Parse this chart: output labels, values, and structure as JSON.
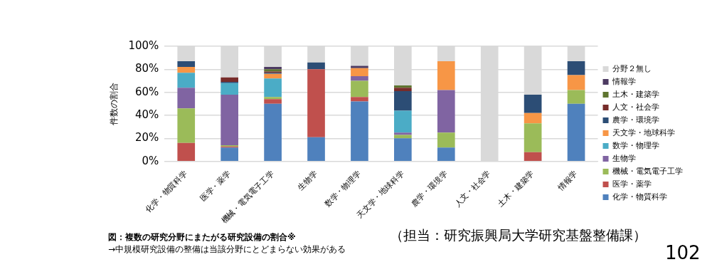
{
  "chart_data": {
    "type": "bar",
    "stacked": true,
    "ylabel": "件数の割合",
    "categories": [
      "化学・物質科学",
      "医学・薬学",
      "機械・電気電子工学",
      "生物学",
      "数学・物理学",
      "天文学・地球科学",
      "農学・環境学",
      "人文・社会学",
      "土木・建築学",
      "情報学"
    ],
    "series": [
      {
        "name": "化学・物質科学",
        "color": "#4f81bd",
        "values": [
          0,
          12,
          50,
          21,
          52,
          20,
          12,
          0,
          0,
          50
        ]
      },
      {
        "name": "医学・薬学",
        "color": "#c0504d",
        "values": [
          16,
          1,
          4,
          59,
          4,
          0,
          0,
          0,
          8,
          0
        ]
      },
      {
        "name": "機械・電気電子工学",
        "color": "#9bbb59",
        "values": [
          30,
          1,
          2,
          0,
          14,
          3,
          13,
          0,
          25,
          12
        ]
      },
      {
        "name": "生物学",
        "color": "#8064a2",
        "values": [
          18,
          44,
          0,
          0,
          4,
          2,
          37,
          0,
          0,
          0
        ]
      },
      {
        "name": "数学・物理学",
        "color": "#4bacc6",
        "values": [
          13,
          10,
          16,
          0,
          0,
          19,
          0,
          0,
          0,
          0
        ]
      },
      {
        "name": "天文学・地球科学",
        "color": "#f79646",
        "values": [
          5,
          0,
          4,
          0,
          7,
          0,
          25,
          0,
          9,
          13
        ]
      },
      {
        "name": "農学・環境学",
        "color": "#2c4d75",
        "values": [
          5,
          1,
          1,
          6,
          0,
          17,
          0,
          0,
          16,
          12
        ]
      },
      {
        "name": "人文・社会学",
        "color": "#772c2a",
        "values": [
          0,
          4,
          1,
          0,
          0,
          3,
          0,
          0,
          0,
          0
        ]
      },
      {
        "name": "土木・建築学",
        "color": "#5f7530",
        "values": [
          0,
          0,
          2,
          0,
          0,
          2,
          0,
          0,
          0,
          0
        ]
      },
      {
        "name": "情報学",
        "color": "#4d3b62",
        "values": [
          0,
          0,
          2,
          0,
          2,
          0,
          0,
          0,
          0,
          0
        ]
      },
      {
        "name": "分野２無し",
        "color": "#d9d9d9",
        "values": [
          13,
          27,
          18,
          14,
          17,
          34,
          13,
          100,
          42,
          13
        ]
      }
    ],
    "ylim": [
      0,
      100
    ],
    "yticks": [
      {
        "value": 0,
        "label": "0%"
      },
      {
        "value": 20,
        "label": "20%"
      },
      {
        "value": 40,
        "label": "40%"
      },
      {
        "value": 60,
        "label": "60%"
      },
      {
        "value": 80,
        "label": "80%"
      },
      {
        "value": 100,
        "label": "100%"
      }
    ],
    "grid": "y",
    "legend": "right",
    "annotations": [
      "図：複数の研究分野にまたがる研究設備の割合※",
      "→中規模研究設備の整備は当該分野にとどまらない効果がある",
      "（担当：研究振興局大学研究基盤整備課）",
      "102"
    ]
  }
}
